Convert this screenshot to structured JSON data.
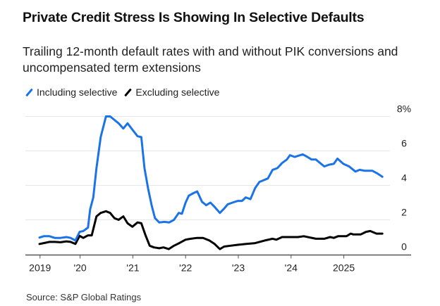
{
  "title": "Private Credit Stress Is Showing In Selective Defaults",
  "subtitle": "Trailing 12-month default rates with and without PIK conversions and uncompensated term extensions",
  "source": "Source: S&P Global Ratings",
  "colors": {
    "including": "#1a73e8",
    "excluding": "#000000",
    "grid": "#e6e6e6",
    "axis": "#555555"
  },
  "chart_data": {
    "type": "line",
    "title": "Private Credit Stress Is Showing In Selective Defaults",
    "subtitle": "Trailing 12-month default rates with and without PIK conversions and uncompensated term extensions",
    "xlabel": "",
    "ylabel": "",
    "xlim": [
      2019.0,
      2025.95
    ],
    "ylim": [
      0,
      8
    ],
    "grid": true,
    "legend_position": "top-left",
    "y_axis_side": "right",
    "x_ticks": [
      {
        "value": 2019.24,
        "label": "2019"
      },
      {
        "value": 2020.0,
        "label": "'20"
      },
      {
        "value": 2021.0,
        "label": "'21"
      },
      {
        "value": 2022.0,
        "label": "'22"
      },
      {
        "value": 2023.0,
        "label": "'23"
      },
      {
        "value": 2024.0,
        "label": "'24"
      },
      {
        "value": 2025.0,
        "label": "2025"
      }
    ],
    "y_ticks": [
      {
        "value": 0,
        "label": "0"
      },
      {
        "value": 2,
        "label": "2"
      },
      {
        "value": 4,
        "label": "4"
      },
      {
        "value": 6,
        "label": "6"
      },
      {
        "value": 8,
        "label": "8%"
      }
    ],
    "series": [
      {
        "name": "Including selective",
        "color": "#1a73e8",
        "x": [
          2019.23,
          2019.31,
          2019.42,
          2019.52,
          2019.63,
          2019.74,
          2019.82,
          2019.91,
          2019.99,
          2020.06,
          2020.15,
          2020.19,
          2020.25,
          2020.31,
          2020.39,
          2020.49,
          2020.57,
          2020.65,
          2020.73,
          2020.82,
          2020.9,
          2021.0,
          2021.09,
          2021.16,
          2021.22,
          2021.29,
          2021.36,
          2021.42,
          2021.5,
          2021.6,
          2021.69,
          2021.78,
          2021.87,
          2021.93,
          2022.0,
          2022.06,
          2022.15,
          2022.22,
          2022.31,
          2022.39,
          2022.47,
          2022.55,
          2022.65,
          2022.73,
          2022.8,
          2022.89,
          2022.99,
          2023.07,
          2023.14,
          2023.23,
          2023.32,
          2023.4,
          2023.56,
          2023.65,
          2023.74,
          2023.83,
          2023.92,
          2023.98,
          2024.07,
          2024.22,
          2024.31,
          2024.39,
          2024.47,
          2024.63,
          2024.72,
          2024.81,
          2024.88,
          2024.99,
          2025.1,
          2025.22,
          2025.3,
          2025.39,
          2025.54,
          2025.63,
          2025.73
        ],
        "values": [
          0.97,
          1.05,
          1.05,
          0.95,
          0.95,
          1.0,
          0.95,
          0.8,
          1.3,
          1.35,
          1.55,
          2.6,
          3.3,
          5.0,
          6.8,
          8.0,
          8.0,
          7.8,
          7.6,
          7.3,
          7.6,
          7.2,
          6.85,
          6.8,
          5.0,
          3.8,
          2.8,
          2.1,
          1.85,
          1.88,
          1.85,
          2.0,
          2.4,
          2.35,
          3.0,
          3.4,
          3.55,
          3.65,
          3.05,
          2.85,
          3.0,
          2.75,
          2.4,
          2.65,
          2.9,
          3.0,
          3.1,
          3.1,
          3.3,
          3.2,
          3.85,
          4.2,
          4.4,
          4.9,
          5.0,
          5.3,
          5.5,
          5.75,
          5.65,
          5.8,
          5.65,
          5.5,
          5.5,
          5.1,
          5.2,
          5.25,
          5.55,
          5.25,
          5.1,
          4.8,
          4.9,
          4.85,
          4.85,
          4.7,
          4.5
        ]
      },
      {
        "name": "Excluding selective",
        "color": "#000000",
        "x": [
          2019.23,
          2019.31,
          2019.42,
          2019.52,
          2019.63,
          2019.74,
          2019.82,
          2019.91,
          2019.99,
          2020.06,
          2020.15,
          2020.22,
          2020.31,
          2020.39,
          2020.49,
          2020.57,
          2020.65,
          2020.73,
          2020.82,
          2020.9,
          2020.99,
          2021.09,
          2021.16,
          2021.24,
          2021.32,
          2021.4,
          2021.5,
          2021.58,
          2021.68,
          2021.78,
          2021.88,
          2022.0,
          2022.1,
          2022.22,
          2022.33,
          2022.45,
          2022.55,
          2022.65,
          2022.73,
          2022.85,
          2022.99,
          2023.15,
          2023.32,
          2023.5,
          2023.65,
          2023.72,
          2023.83,
          2023.97,
          2024.13,
          2024.24,
          2024.47,
          2024.63,
          2024.74,
          2024.81,
          2024.89,
          2025.05,
          2025.13,
          2025.18,
          2025.32,
          2025.42,
          2025.5,
          2025.62,
          2025.73
        ],
        "values": [
          0.6,
          0.65,
          0.72,
          0.72,
          0.7,
          0.75,
          0.72,
          0.6,
          1.07,
          0.95,
          1.1,
          1.1,
          2.2,
          2.4,
          2.5,
          2.4,
          2.1,
          2.0,
          2.2,
          1.8,
          1.6,
          1.85,
          1.8,
          1.1,
          0.5,
          0.4,
          0.35,
          0.4,
          0.3,
          0.5,
          0.65,
          0.85,
          0.9,
          0.95,
          0.95,
          0.8,
          0.6,
          0.3,
          0.45,
          0.5,
          0.55,
          0.6,
          0.65,
          0.8,
          0.9,
          0.85,
          1.0,
          1.0,
          1.0,
          1.05,
          0.9,
          0.9,
          1.0,
          0.95,
          1.05,
          1.05,
          1.2,
          1.15,
          1.15,
          1.3,
          1.35,
          1.2,
          1.2
        ]
      }
    ]
  }
}
